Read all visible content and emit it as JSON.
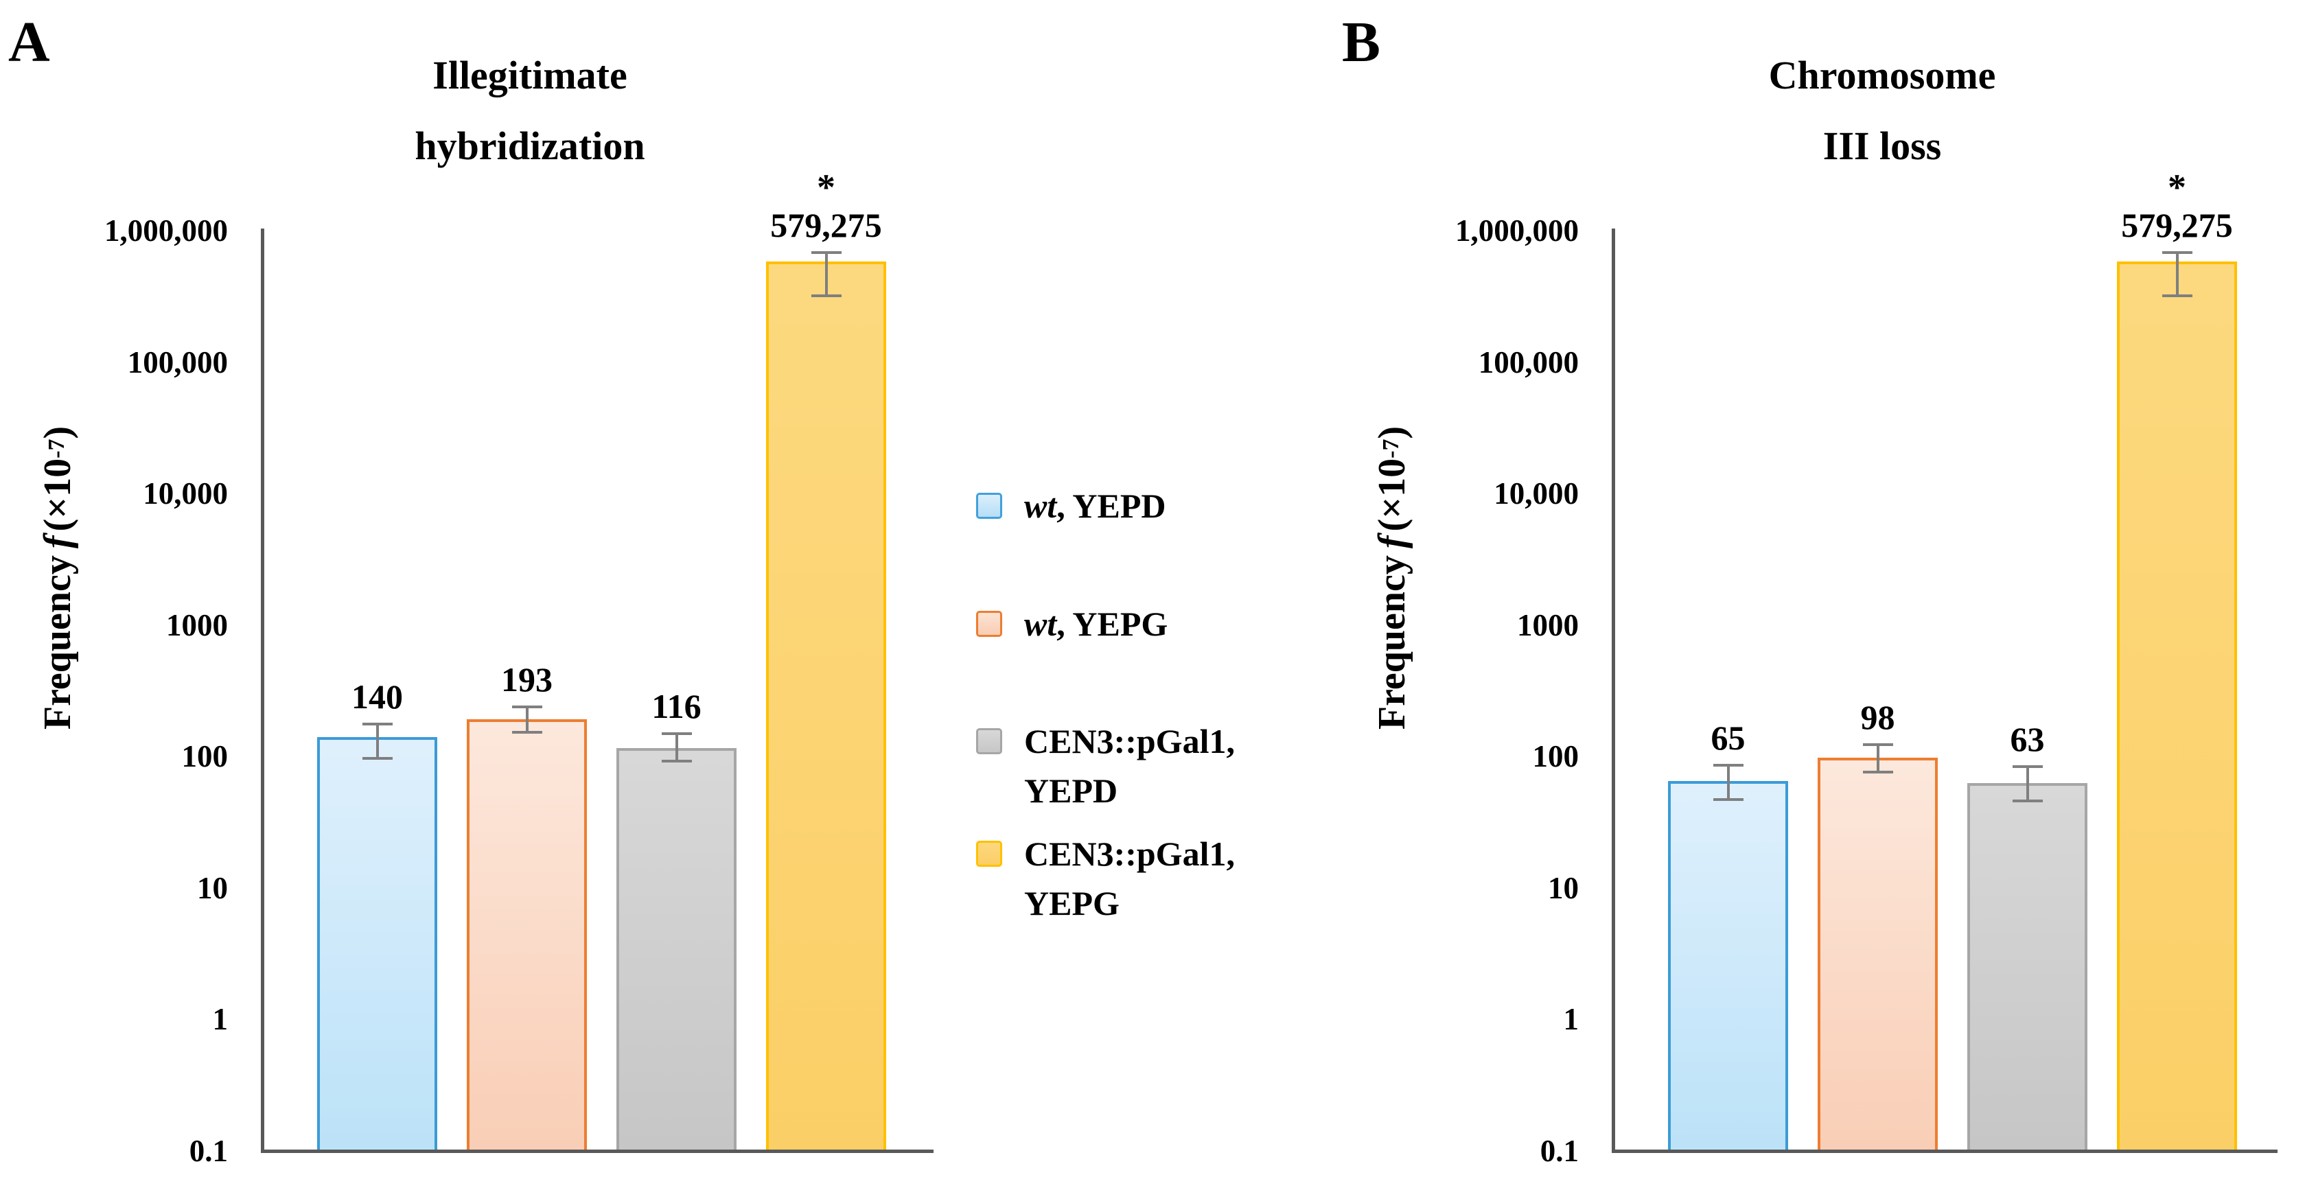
{
  "figure": {
    "panels": [
      {
        "letter": "A",
        "title_lines": [
          "Illegitimate",
          "hybridization"
        ],
        "y_axis_label": {
          "word": "Frequency",
          "symbol": "f",
          "open": "(×10",
          "exponent": "-7",
          "close": ")"
        }
      },
      {
        "letter": "B",
        "title_lines": [
          "Chromosome",
          "III loss"
        ],
        "y_axis_label": {
          "word": "Frequency",
          "symbol": "f",
          "open": "(×10",
          "exponent": "-7",
          "close": ")"
        }
      }
    ],
    "legend": {
      "items": [
        {
          "italic": "wt",
          "line1": ", YEPD",
          "line2": "",
          "fill_top": "#DCEFFB",
          "fill_bottom": "#B5DEF6",
          "border": "#41A0DC"
        },
        {
          "italic": "wt",
          "line1": ", YEPG",
          "line2": "",
          "fill_top": "#FCE3D3",
          "fill_bottom": "#F9CDB4",
          "border": "#ED7D31"
        },
        {
          "italic": "",
          "line1": "CEN3::pGal1,",
          "line2": "YEPD",
          "fill_top": "#D8D8D8",
          "fill_bottom": "#C7C7C7",
          "border": "#A6A6A6"
        },
        {
          "italic": "",
          "line1": "CEN3::pGal1,",
          "line2": "YEPG",
          "fill_top": "#FCD87E",
          "fill_bottom": "#FBCE66",
          "border": "#FFC000"
        }
      ]
    },
    "bar_styles": [
      {
        "fill_top": "#DFF0FC",
        "fill_bottom": "#BCE2F8",
        "border": "#3B9BD8"
      },
      {
        "fill_top": "#FCE8DC",
        "fill_bottom": "#F9CEB6",
        "border": "#ED7D31"
      },
      {
        "fill_top": "#D8D8D8",
        "fill_bottom": "#C6C6C6",
        "border": "#A6A6A6"
      },
      {
        "fill_top": "#FCD97F",
        "fill_bottom": "#FBCF67",
        "border": "#FFC000"
      }
    ],
    "error_bar_color": "#7F7F7F",
    "axis_color": "#595959"
  },
  "chart_data": [
    {
      "type": "bar",
      "panel": "A",
      "title": "Illegitimate hybridization",
      "xlabel": "",
      "ylabel": "Frequency f (×10-7)",
      "yscale": "log",
      "ylim": [
        0.1,
        1000000
      ],
      "ytick_labels": [
        "1,000,000",
        "100,000",
        "10,000",
        "1000",
        "100",
        "10",
        "1",
        "0.1"
      ],
      "grid": false,
      "legend_position": "right-of-panel-A",
      "categories": [
        "wt, YEPD",
        "wt, YEPG",
        "CEN3::pGal1, YEPD",
        "CEN3::pGal1, YEPG"
      ],
      "values": [
        140,
        193,
        116,
        579275
      ],
      "value_labels": [
        "140",
        "193",
        "116",
        "579,275"
      ],
      "err_hi": [
        180,
        245,
        152,
        700000
      ],
      "err_lo": [
        95,
        150,
        90,
        310000
      ],
      "significance": [
        "",
        "",
        "",
        "*"
      ]
    },
    {
      "type": "bar",
      "panel": "B",
      "title": "Chromosome III loss",
      "xlabel": "",
      "ylabel": "Frequency f (×10-7)",
      "yscale": "log",
      "ylim": [
        0.1,
        1000000
      ],
      "ytick_labels": [
        "1,000,000",
        "100,000",
        "10,000",
        "1000",
        "100",
        "10",
        "1",
        "0.1"
      ],
      "grid": false,
      "categories": [
        "wt, YEPD",
        "wt, YEPG",
        "CEN3::pGal1, YEPD",
        "CEN3::pGal1, YEPG"
      ],
      "values": [
        65,
        98,
        63,
        579275
      ],
      "value_labels": [
        "65",
        "98",
        "63",
        "579,275"
      ],
      "err_hi": [
        88,
        126,
        86,
        700000
      ],
      "err_lo": [
        46,
        74,
        45,
        310000
      ],
      "significance": [
        "",
        "",
        "",
        "*"
      ]
    }
  ]
}
